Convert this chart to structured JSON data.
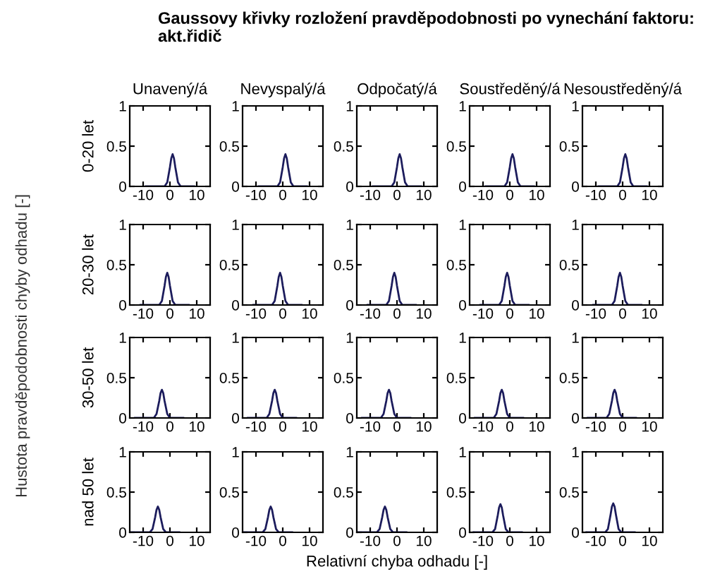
{
  "chart_data": [
    {
      "type": "line",
      "title": "Unavený/á",
      "ylabel": "0-20 let",
      "annotations": [
        "Gaussovy křivky rozložení pravděpodobnosti po vynechání faktoru: akt.řidič",
        "Hustota pravděpodobnosti chyby odhadu [-]"
      ],
      "xlim": [
        -15,
        15
      ],
      "ylim": [
        0,
        1
      ],
      "xticks": [
        -10,
        0,
        10
      ],
      "yticks": [
        0,
        0.5,
        1
      ],
      "x": [
        -9,
        -2,
        -1,
        0,
        0.5,
        1,
        1.5,
        2,
        3,
        4,
        9
      ],
      "series": [
        {
          "color": "#1c1c5c",
          "values": [
            0,
            0,
            0.05,
            0.24,
            0.35,
            0.4,
            0.35,
            0.24,
            0.05,
            0,
            0
          ]
        }
      ]
    },
    {
      "type": "line",
      "title": "Nevyspalý/á",
      "xlim": [
        -15,
        15
      ],
      "ylim": [
        0,
        1
      ],
      "xticks": [
        -10,
        0,
        10
      ],
      "yticks": [
        0,
        0.5,
        1
      ],
      "x": [
        -9,
        -2,
        -1,
        0,
        0.5,
        1,
        1.5,
        2,
        3,
        4,
        9
      ],
      "series": [
        {
          "color": "#1c1c5c",
          "values": [
            0,
            0,
            0.05,
            0.24,
            0.35,
            0.4,
            0.35,
            0.24,
            0.05,
            0,
            0
          ]
        }
      ]
    },
    {
      "type": "line",
      "title": "Odpočatý/á",
      "xlim": [
        -15,
        15
      ],
      "ylim": [
        0,
        1
      ],
      "xticks": [
        -10,
        0,
        10
      ],
      "yticks": [
        0,
        0.5,
        1
      ],
      "x": [
        -9,
        -2,
        -1,
        0,
        0.5,
        1,
        1.5,
        2,
        3,
        4,
        9
      ],
      "series": [
        {
          "color": "#1c1c5c",
          "values": [
            0,
            0,
            0.05,
            0.24,
            0.35,
            0.4,
            0.35,
            0.24,
            0.05,
            0,
            0
          ]
        }
      ]
    },
    {
      "type": "line",
      "title": "Soustředěný/á",
      "xlim": [
        -15,
        15
      ],
      "ylim": [
        0,
        1
      ],
      "xticks": [
        -10,
        0,
        10
      ],
      "yticks": [
        0,
        0.5,
        1
      ],
      "x": [
        -9,
        -2,
        -1,
        0,
        0.5,
        1,
        1.5,
        2,
        3,
        4,
        9
      ],
      "series": [
        {
          "color": "#1c1c5c",
          "values": [
            0,
            0,
            0.05,
            0.24,
            0.35,
            0.4,
            0.35,
            0.24,
            0.05,
            0,
            0
          ]
        }
      ]
    },
    {
      "type": "line",
      "title": "Nesoustředěný/á",
      "xlim": [
        -15,
        15
      ],
      "ylim": [
        0,
        1
      ],
      "xticks": [
        -10,
        0,
        10
      ],
      "yticks": [
        0,
        0.5,
        1
      ],
      "x": [
        -9,
        -2,
        -1,
        0,
        0.5,
        1,
        1.5,
        2,
        3,
        4,
        9
      ],
      "series": [
        {
          "color": "#1c1c5c",
          "values": [
            0,
            0,
            0.05,
            0.24,
            0.35,
            0.4,
            0.35,
            0.24,
            0.05,
            0,
            0
          ]
        }
      ]
    },
    {
      "type": "line",
      "ylabel": "20-30 let",
      "xlim": [
        -15,
        15
      ],
      "ylim": [
        0,
        1
      ],
      "xticks": [
        -10,
        0,
        10
      ],
      "yticks": [
        0,
        0.5,
        1
      ],
      "x": [
        -11,
        -4,
        -3,
        -2,
        -1.5,
        -1,
        -0.5,
        0,
        1,
        2,
        7
      ],
      "series": [
        {
          "color": "#1c1c5c",
          "values": [
            0,
            0,
            0.05,
            0.24,
            0.35,
            0.4,
            0.35,
            0.24,
            0.05,
            0,
            0
          ]
        }
      ]
    },
    {
      "type": "line",
      "xlim": [
        -15,
        15
      ],
      "ylim": [
        0,
        1
      ],
      "xticks": [
        -10,
        0,
        10
      ],
      "yticks": [
        0,
        0.5,
        1
      ],
      "x": [
        -11,
        -4,
        -3,
        -2,
        -1.5,
        -1,
        -0.5,
        0,
        1,
        2,
        7
      ],
      "series": [
        {
          "color": "#1c1c5c",
          "values": [
            0,
            0,
            0.05,
            0.24,
            0.35,
            0.4,
            0.35,
            0.24,
            0.05,
            0,
            0
          ]
        }
      ]
    },
    {
      "type": "line",
      "xlim": [
        -15,
        15
      ],
      "ylim": [
        0,
        1
      ],
      "xticks": [
        -10,
        0,
        10
      ],
      "yticks": [
        0,
        0.5,
        1
      ],
      "x": [
        -11,
        -4,
        -3,
        -2,
        -1.5,
        -1,
        -0.5,
        0,
        1,
        2,
        7
      ],
      "series": [
        {
          "color": "#1c1c5c",
          "values": [
            0,
            0,
            0.05,
            0.24,
            0.35,
            0.4,
            0.35,
            0.24,
            0.05,
            0,
            0
          ]
        }
      ]
    },
    {
      "type": "line",
      "xlim": [
        -15,
        15
      ],
      "ylim": [
        0,
        1
      ],
      "xticks": [
        -10,
        0,
        10
      ],
      "yticks": [
        0,
        0.5,
        1
      ],
      "x": [
        -11,
        -4,
        -3,
        -2,
        -1.5,
        -1,
        -0.5,
        0,
        1,
        2,
        7
      ],
      "series": [
        {
          "color": "#1c1c5c",
          "values": [
            0,
            0,
            0.05,
            0.24,
            0.35,
            0.4,
            0.35,
            0.24,
            0.05,
            0,
            0
          ]
        }
      ]
    },
    {
      "type": "line",
      "xlim": [
        -15,
        15
      ],
      "ylim": [
        0,
        1
      ],
      "xticks": [
        -10,
        0,
        10
      ],
      "yticks": [
        0,
        0.5,
        1
      ],
      "x": [
        -11,
        -4,
        -3,
        -2,
        -1.5,
        -1,
        -0.5,
        0,
        1,
        2,
        7
      ],
      "series": [
        {
          "color": "#1c1c5c",
          "values": [
            0,
            0,
            0.05,
            0.24,
            0.35,
            0.4,
            0.35,
            0.24,
            0.05,
            0,
            0
          ]
        }
      ]
    },
    {
      "type": "line",
      "ylabel": "30-50 let",
      "xlim": [
        -15,
        15
      ],
      "ylim": [
        0,
        1
      ],
      "xticks": [
        -10,
        0,
        10
      ],
      "yticks": [
        0,
        0.5,
        1
      ],
      "x": [
        -13,
        -6,
        -5,
        -4,
        -3.5,
        -3,
        -2.5,
        -2,
        -1,
        0,
        5
      ],
      "series": [
        {
          "color": "#1c1c5c",
          "values": [
            0,
            0,
            0.05,
            0.21,
            0.31,
            0.35,
            0.31,
            0.21,
            0.05,
            0,
            0
          ]
        }
      ]
    },
    {
      "type": "line",
      "xlim": [
        -15,
        15
      ],
      "ylim": [
        0,
        1
      ],
      "xticks": [
        -10,
        0,
        10
      ],
      "yticks": [
        0,
        0.5,
        1
      ],
      "x": [
        -13,
        -6,
        -5,
        -4,
        -3.5,
        -3,
        -2.5,
        -2,
        -1,
        0,
        5
      ],
      "series": [
        {
          "color": "#1c1c5c",
          "values": [
            0,
            0,
            0.05,
            0.21,
            0.31,
            0.35,
            0.31,
            0.21,
            0.05,
            0,
            0
          ]
        }
      ]
    },
    {
      "type": "line",
      "xlim": [
        -15,
        15
      ],
      "ylim": [
        0,
        1
      ],
      "xticks": [
        -10,
        0,
        10
      ],
      "yticks": [
        0,
        0.5,
        1
      ],
      "x": [
        -13,
        -6,
        -5,
        -4,
        -3.5,
        -3,
        -2.5,
        -2,
        -1,
        0,
        5
      ],
      "series": [
        {
          "color": "#1c1c5c",
          "values": [
            0,
            0,
            0.05,
            0.21,
            0.31,
            0.35,
            0.31,
            0.21,
            0.05,
            0,
            0
          ]
        }
      ]
    },
    {
      "type": "line",
      "xlim": [
        -15,
        15
      ],
      "ylim": [
        0,
        1
      ],
      "xticks": [
        -10,
        0,
        10
      ],
      "yticks": [
        0,
        0.5,
        1
      ],
      "x": [
        -13,
        -6,
        -5,
        -4,
        -3.5,
        -3,
        -2.5,
        -2,
        -1,
        0,
        5
      ],
      "series": [
        {
          "color": "#1c1c5c",
          "values": [
            0,
            0,
            0.05,
            0.21,
            0.31,
            0.35,
            0.31,
            0.21,
            0.05,
            0,
            0
          ]
        }
      ]
    },
    {
      "type": "line",
      "xlim": [
        -15,
        15
      ],
      "ylim": [
        0,
        1
      ],
      "xticks": [
        -10,
        0,
        10
      ],
      "yticks": [
        0,
        0.5,
        1
      ],
      "x": [
        -13,
        -6,
        -5,
        -4,
        -3.5,
        -3,
        -2.5,
        -2,
        -1,
        0,
        5
      ],
      "series": [
        {
          "color": "#1c1c5c",
          "values": [
            0,
            0,
            0.05,
            0.21,
            0.31,
            0.35,
            0.31,
            0.21,
            0.05,
            0,
            0
          ]
        }
      ]
    },
    {
      "type": "line",
      "ylabel": "nad 50 let",
      "xlim": [
        -15,
        15
      ],
      "ylim": [
        0,
        1
      ],
      "xticks": [
        -10,
        0,
        10
      ],
      "yticks": [
        0,
        0.5,
        1
      ],
      "x": [
        -14.5,
        -7.5,
        -6.5,
        -5.5,
        -5,
        -4.5,
        -4,
        -3.5,
        -2.5,
        -1.5,
        3.5
      ],
      "series": [
        {
          "color": "#1c1c5c",
          "values": [
            0,
            0,
            0.04,
            0.19,
            0.28,
            0.32,
            0.28,
            0.19,
            0.04,
            0,
            0
          ]
        }
      ]
    },
    {
      "type": "line",
      "xlim": [
        -15,
        15
      ],
      "ylim": [
        0,
        1
      ],
      "xticks": [
        -10,
        0,
        10
      ],
      "yticks": [
        0,
        0.5,
        1
      ],
      "x": [
        -14.5,
        -7.5,
        -6.5,
        -5.5,
        -5,
        -4.5,
        -4,
        -3.5,
        -2.5,
        -1.5,
        3.5
      ],
      "series": [
        {
          "color": "#1c1c5c",
          "values": [
            0,
            0,
            0.04,
            0.19,
            0.28,
            0.32,
            0.28,
            0.19,
            0.04,
            0,
            0
          ]
        }
      ]
    },
    {
      "type": "line",
      "xlabel": "Relativní chyba odhadu [-]",
      "xlim": [
        -15,
        15
      ],
      "ylim": [
        0,
        1
      ],
      "xticks": [
        -10,
        0,
        10
      ],
      "yticks": [
        0,
        0.5,
        1
      ],
      "x": [
        -14.5,
        -7.5,
        -6.5,
        -5.5,
        -5,
        -4.5,
        -4,
        -3.5,
        -2.5,
        -1.5,
        3.5
      ],
      "series": [
        {
          "color": "#1c1c5c",
          "values": [
            0,
            0,
            0.04,
            0.19,
            0.28,
            0.32,
            0.28,
            0.19,
            0.04,
            0,
            0
          ]
        }
      ]
    },
    {
      "type": "line",
      "xlim": [
        -15,
        15
      ],
      "ylim": [
        0,
        1
      ],
      "xticks": [
        -10,
        0,
        10
      ],
      "yticks": [
        0,
        0.5,
        1
      ],
      "x": [
        -13.5,
        -6.5,
        -5.5,
        -4.5,
        -4,
        -3.5,
        -3,
        -2.5,
        -1.5,
        -0.5,
        4.5
      ],
      "series": [
        {
          "color": "#1c1c5c",
          "values": [
            0,
            0,
            0.04,
            0.21,
            0.31,
            0.35,
            0.31,
            0.21,
            0.04,
            0,
            0
          ]
        }
      ]
    },
    {
      "type": "line",
      "xlim": [
        -15,
        15
      ],
      "ylim": [
        0,
        1
      ],
      "xticks": [
        -10,
        0,
        10
      ],
      "yticks": [
        0,
        0.5,
        1
      ],
      "x": [
        -13.5,
        -6.5,
        -5.5,
        -4.5,
        -4,
        -3.5,
        -3,
        -2.5,
        -1.5,
        -0.5,
        4.5
      ],
      "series": [
        {
          "color": "#1c1c5c",
          "values": [
            0,
            0,
            0.04,
            0.22,
            0.32,
            0.36,
            0.32,
            0.22,
            0.04,
            0,
            0
          ]
        }
      ]
    }
  ]
}
